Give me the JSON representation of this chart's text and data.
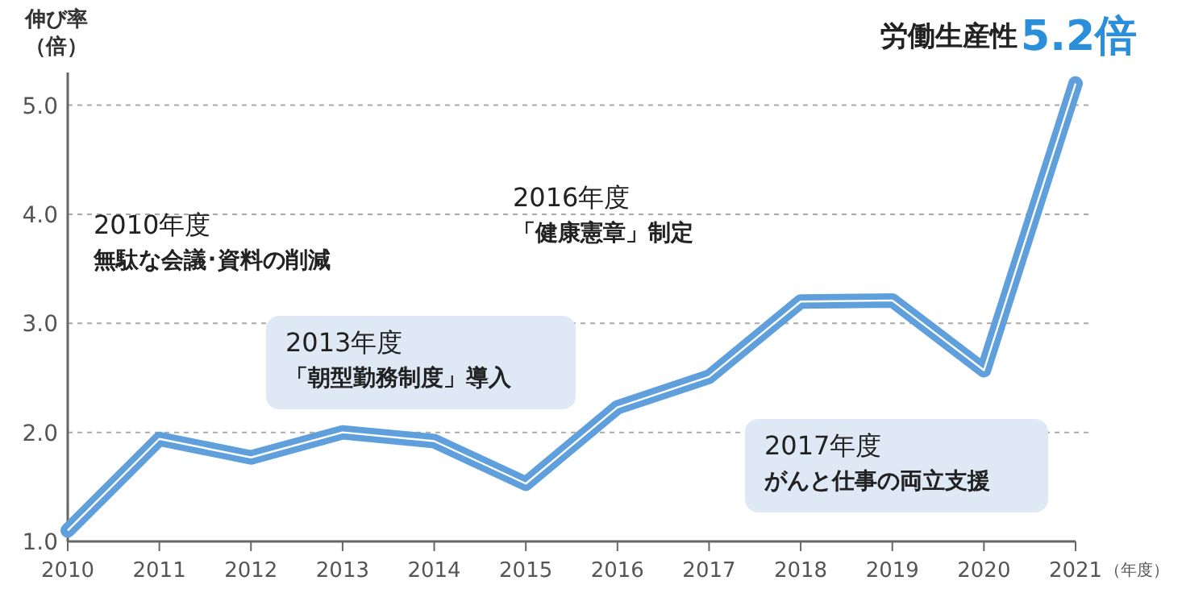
{
  "chart_data": {
    "type": "line",
    "ylabel": "伸び率（倍）",
    "xlabel": "（年度）",
    "x": [
      2010,
      2011,
      2012,
      2013,
      2014,
      2015,
      2016,
      2017,
      2018,
      2019,
      2020,
      2021
    ],
    "series": [
      {
        "color": "#5fa0dc",
        "values": [
          1.1,
          1.94,
          1.77,
          2.0,
          1.92,
          1.53,
          2.23,
          2.51,
          3.2,
          3.21,
          2.57,
          5.2
        ]
      }
    ],
    "xlim": [
      2010,
      2021
    ],
    "xticks": [
      2010,
      2011,
      2012,
      2013,
      2014,
      2015,
      2016,
      2017,
      2018,
      2019,
      2020,
      2021
    ],
    "ylim": [
      1,
      5.3
    ],
    "yticks": [
      {
        "value": 1,
        "label": "1.0"
      },
      {
        "value": 2,
        "label": "2.0"
      },
      {
        "value": 3,
        "label": "3.0"
      },
      {
        "value": 4,
        "label": "4.0"
      },
      {
        "value": 5,
        "label": "5.0"
      }
    ],
    "grid": "y",
    "marker": "none",
    "line_style": "solid",
    "annotations": [
      {
        "text": "労働生産性",
        "x": 2021,
        "y": 5.2
      },
      {
        "text": "5.2倍",
        "x": 2021,
        "y": 5.2
      },
      "2010年度",
      "無駄な会議･資料の削減",
      "2013年度",
      "「朝型勤務制度」導入",
      "2016年度",
      "「健康憲章」制定",
      "2017年度",
      "がんと仕事の両立支援"
    ]
  }
}
